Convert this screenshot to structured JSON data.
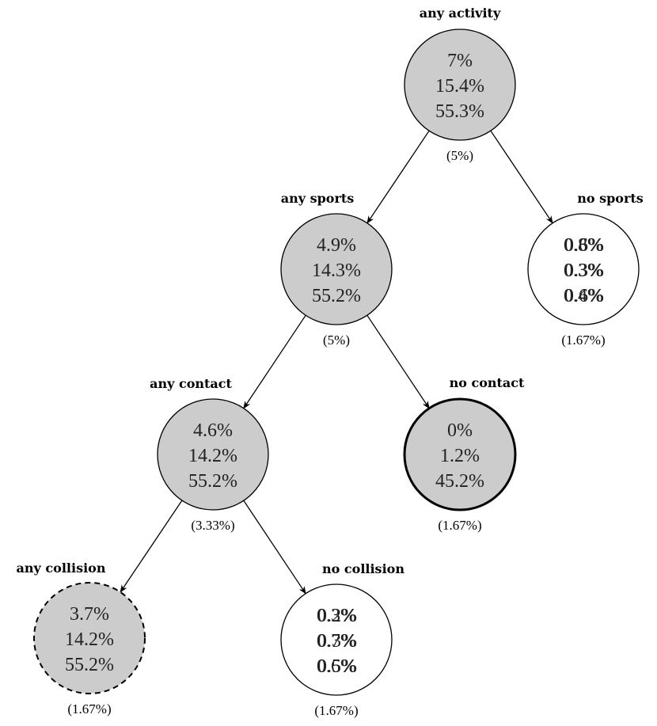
{
  "tree": {
    "nodes": [
      {
        "id": "any-activity",
        "title": "any activity",
        "lines": [
          "7%",
          "15.4%",
          "55.3%"
        ],
        "weight": "(5%)",
        "fill": "#cccccc",
        "border": "solid"
      },
      {
        "id": "any-sports",
        "title": "any sports",
        "lines": [
          "4.9%",
          "14.3%",
          "55.2%"
        ],
        "weight": "(5%)",
        "fill": "#cccccc",
        "border": "solid"
      },
      {
        "id": "no-sports",
        "title": "no sports",
        "lines": [
          "0.8%",
          "0.3%",
          "0.4%"
        ],
        "overlay_lines": [
          "0.6%",
          "0.3%",
          "0.6%"
        ],
        "weight": "(1.67%)",
        "fill": "#ffffff",
        "border": "solid"
      },
      {
        "id": "any-contact",
        "title": "any contact",
        "lines": [
          "4.6%",
          "14.2%",
          "55.2%"
        ],
        "weight": "(3.33%)",
        "fill": "#cccccc",
        "border": "solid"
      },
      {
        "id": "no-contact",
        "title": "no contact",
        "lines": [
          "0%",
          "1.2%",
          "45.2%"
        ],
        "weight": "(1.67%)",
        "fill": "#cccccc",
        "border": "thick"
      },
      {
        "id": "any-collision",
        "title": "any collision",
        "lines": [
          "3.7%",
          "14.2%",
          "55.2%"
        ],
        "weight": "(1.67%)",
        "fill": "#cccccc",
        "border": "dashed"
      },
      {
        "id": "no-collision",
        "title": "no collision",
        "lines": [
          "0.3%",
          "0.7%",
          "0.6%"
        ],
        "overlay_lines": [
          "0.2%",
          "0.3%",
          "0.5%"
        ],
        "weight": "(1.67%)",
        "fill": "#ffffff",
        "border": "solid"
      }
    ],
    "edges": [
      {
        "from": "any-activity",
        "to": "any-sports"
      },
      {
        "from": "any-activity",
        "to": "no-sports"
      },
      {
        "from": "any-sports",
        "to": "any-contact"
      },
      {
        "from": "any-sports",
        "to": "no-contact"
      },
      {
        "from": "any-contact",
        "to": "any-collision"
      },
      {
        "from": "any-contact",
        "to": "no-collision"
      }
    ]
  }
}
